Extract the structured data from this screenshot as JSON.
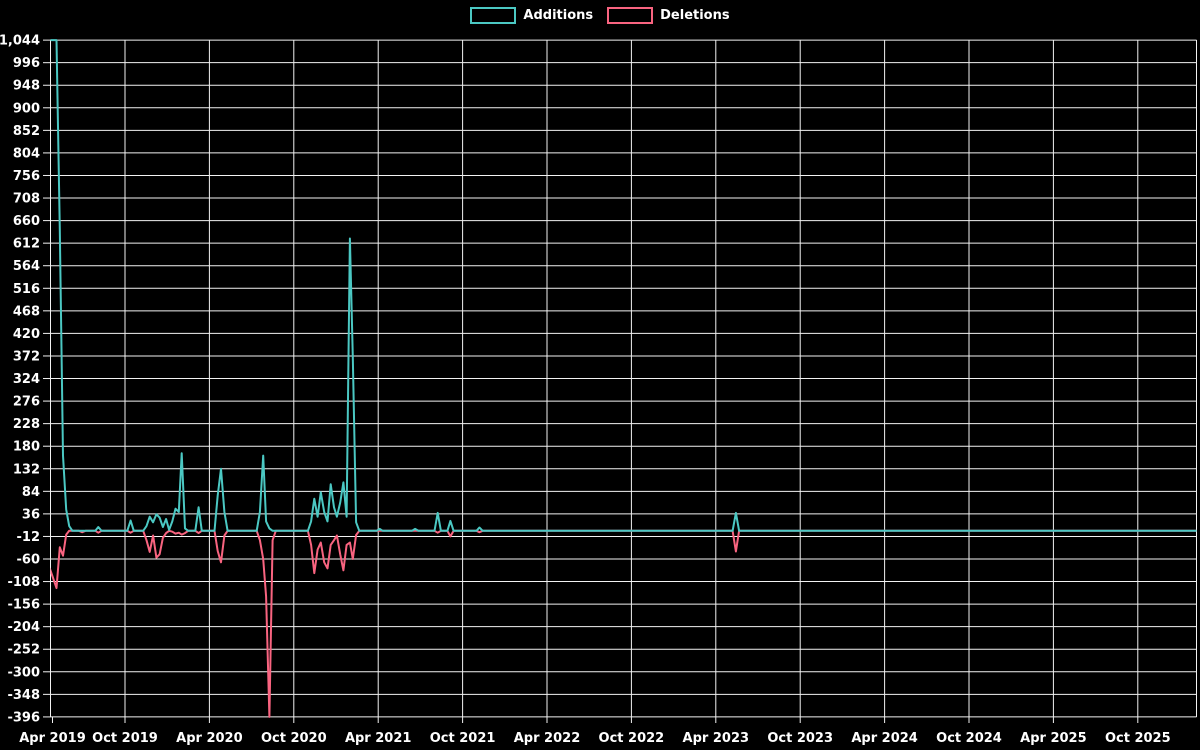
{
  "page": {
    "background": "#000000",
    "grid_color": "#f2f2f2",
    "text_color": "#ffffff"
  },
  "legend": {
    "items": [
      {
        "label": "Additions",
        "color": "#4bc8c3"
      },
      {
        "label": "Deletions",
        "color": "#f96480"
      }
    ]
  },
  "chart_data": {
    "type": "line",
    "title": "",
    "xlabel": "",
    "ylabel": "",
    "grid": true,
    "legend_position": "top-center",
    "x_axis": {
      "start_month": "2019-04",
      "months_per_tick": 6,
      "tick_labels": [
        "Apr 2019",
        "Oct 2019",
        "Apr 2020",
        "Oct 2020",
        "Apr 2021",
        "Oct 2021",
        "Apr 2022",
        "Oct 2022",
        "Apr 2023",
        "Oct 2023",
        "Apr 2024",
        "Oct 2024",
        "Apr 2025",
        "Oct 2025"
      ]
    },
    "y_axis": {
      "min": -396,
      "max": 1044,
      "step": 48,
      "tick_labels": [
        "1,044",
        "996",
        "948",
        "900",
        "852",
        "804",
        "756",
        "708",
        "660",
        "612",
        "564",
        "516",
        "468",
        "420",
        "372",
        "324",
        "276",
        "228",
        "180",
        "132",
        "84",
        "36",
        "-12",
        "-60",
        "-108",
        "-156",
        "-204",
        "-252",
        "-300",
        "-348",
        "-396"
      ]
    },
    "series": [
      {
        "name": "Additions",
        "color": "#4bc8c3"
      },
      {
        "name": "Deletions",
        "color": "#f96480"
      }
    ],
    "points_format": [
      "week",
      "additions",
      "deletions"
    ],
    "points": [
      [
        "2019-04-14",
        1044,
        -60
      ],
      [
        "2019-05-05",
        1044,
        -122
      ],
      [
        "2019-05-12",
        640,
        -35
      ],
      [
        "2019-05-19",
        160,
        -53
      ],
      [
        "2019-05-26",
        45,
        -8
      ],
      [
        "2019-06-02",
        10,
        0
      ],
      [
        "2019-06-09",
        0,
        0
      ],
      [
        "2019-06-23",
        0,
        0
      ],
      [
        "2019-06-30",
        0,
        -3
      ],
      [
        "2019-07-07",
        0,
        0
      ],
      [
        "2019-07-28",
        0,
        0
      ],
      [
        "2019-08-04",
        8,
        -4
      ],
      [
        "2019-08-11",
        0,
        0
      ],
      [
        "2019-10-06",
        0,
        0
      ],
      [
        "2019-10-13",
        22,
        -4
      ],
      [
        "2019-10-20",
        0,
        0
      ],
      [
        "2019-11-10",
        0,
        0
      ],
      [
        "2019-11-17",
        10,
        -20
      ],
      [
        "2019-11-24",
        30,
        -45
      ],
      [
        "2019-12-01",
        18,
        -10
      ],
      [
        "2019-12-08",
        35,
        -57
      ],
      [
        "2019-12-15",
        28,
        -50
      ],
      [
        "2019-12-22",
        8,
        -15
      ],
      [
        "2019-12-29",
        25,
        -5
      ],
      [
        "2020-01-05",
        2,
        0
      ],
      [
        "2020-01-12",
        20,
        -2
      ],
      [
        "2020-01-19",
        47,
        -6
      ],
      [
        "2020-01-26",
        40,
        -4
      ],
      [
        "2020-02-02",
        165,
        -8
      ],
      [
        "2020-02-09",
        5,
        -5
      ],
      [
        "2020-02-16",
        0,
        0
      ],
      [
        "2020-03-01",
        0,
        0
      ],
      [
        "2020-03-08",
        50,
        -5
      ],
      [
        "2020-03-15",
        0,
        0
      ],
      [
        "2020-04-12",
        0,
        0
      ],
      [
        "2020-04-19",
        75,
        -43
      ],
      [
        "2020-04-26",
        132,
        -67
      ],
      [
        "2020-05-03",
        40,
        -10
      ],
      [
        "2020-05-10",
        0,
        0
      ],
      [
        "2020-07-12",
        0,
        0
      ],
      [
        "2020-07-19",
        40,
        -20
      ],
      [
        "2020-07-26",
        160,
        -60
      ],
      [
        "2020-08-02",
        20,
        -140
      ],
      [
        "2020-08-09",
        5,
        -396
      ],
      [
        "2020-08-16",
        0,
        -20
      ],
      [
        "2020-08-23",
        0,
        0
      ],
      [
        "2020-11-01",
        0,
        0
      ],
      [
        "2020-11-08",
        20,
        -30
      ],
      [
        "2020-11-15",
        68,
        -90
      ],
      [
        "2020-11-22",
        30,
        -40
      ],
      [
        "2020-11-29",
        82,
        -25
      ],
      [
        "2020-12-06",
        40,
        -67
      ],
      [
        "2020-12-13",
        20,
        -80
      ],
      [
        "2020-12-20",
        99,
        -30
      ],
      [
        "2020-12-27",
        50,
        -20
      ],
      [
        "2021-01-03",
        30,
        -10
      ],
      [
        "2021-01-10",
        60,
        -50
      ],
      [
        "2021-01-17",
        103,
        -84
      ],
      [
        "2021-01-24",
        30,
        -30
      ],
      [
        "2021-01-31",
        622,
        -25
      ],
      [
        "2021-02-07",
        370,
        -60
      ],
      [
        "2021-02-14",
        18,
        -9
      ],
      [
        "2021-02-21",
        0,
        0
      ],
      [
        "2021-03-28",
        0,
        0
      ],
      [
        "2021-04-04",
        4,
        0
      ],
      [
        "2021-04-11",
        0,
        0
      ],
      [
        "2021-06-13",
        0,
        0
      ],
      [
        "2021-06-20",
        4,
        0
      ],
      [
        "2021-06-27",
        0,
        0
      ],
      [
        "2021-08-01",
        0,
        0
      ],
      [
        "2021-08-08",
        38,
        -4
      ],
      [
        "2021-08-15",
        0,
        0
      ],
      [
        "2021-08-29",
        0,
        0
      ],
      [
        "2021-09-05",
        21,
        -12
      ],
      [
        "2021-09-12",
        0,
        0
      ],
      [
        "2021-10-31",
        0,
        0
      ],
      [
        "2021-11-07",
        7,
        -3
      ],
      [
        "2021-11-14",
        0,
        0
      ],
      [
        "2023-05-07",
        0,
        0
      ],
      [
        "2023-05-14",
        38,
        -44
      ],
      [
        "2023-05-21",
        0,
        0
      ],
      [
        "2026-02-08",
        0,
        0
      ]
    ]
  }
}
